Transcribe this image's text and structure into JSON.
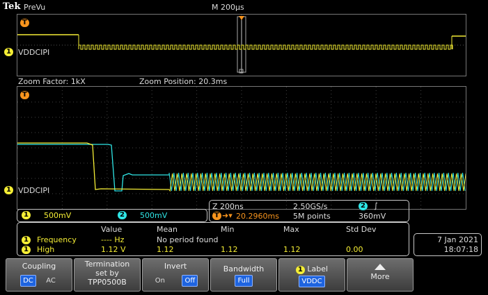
{
  "header": {
    "brand": "Tek",
    "mode": "PreVu",
    "timebase": "M 200μs"
  },
  "overview": {
    "channel_num": "1",
    "channel_label": "VDDCIPI",
    "trigger_marker": "T"
  },
  "zoom_info": {
    "factor": "Zoom Factor: 1kX",
    "position": "Zoom Position: 20.3ms"
  },
  "zoom_view": {
    "trigger_marker": "T",
    "channel_num": "1",
    "channel_label": "VDDCIPI"
  },
  "scales": {
    "ch1_num": "1",
    "ch1_scale": "500mV",
    "ch2_num": "2",
    "ch2_scale": "500mV"
  },
  "acq": {
    "zoom_scale": "Z 200ns",
    "sample_rate": "2.50GS/s",
    "trig_source": "2",
    "trig_slope": "∫",
    "trig_pos_marker": "T",
    "trig_pos": "20.2960ms",
    "record_length": "5M points",
    "trig_level": "360mV"
  },
  "measurements": {
    "headers": [
      "Value",
      "Mean",
      "Min",
      "Max",
      "Std Dev"
    ],
    "rows": [
      {
        "ch": "1",
        "name": "Frequency",
        "value": "---- Hz",
        "mean": "No period found",
        "min": "",
        "max": "",
        "std": ""
      },
      {
        "ch": "1",
        "name": "High",
        "value": "1.12 V",
        "mean": "1.12",
        "min": "1.12",
        "max": "1.12",
        "std": "0.00"
      }
    ]
  },
  "datetime": {
    "date": "7 Jan  2021",
    "time": "18:07:18"
  },
  "softkeys": {
    "coupling": {
      "title": "Coupling",
      "opt1": "DC",
      "opt2": "AC"
    },
    "termination": {
      "line1": "Termination",
      "line2": "set by",
      "line3": "TPP0500B"
    },
    "invert": {
      "title": "Invert",
      "opt1": "On",
      "opt2": "Off"
    },
    "bandwidth": {
      "title": "Bandwidth",
      "value": "Full"
    },
    "label": {
      "ch": "1",
      "title": "Label",
      "value": "VDDC"
    },
    "more": {
      "title": "More"
    }
  },
  "colors": {
    "ch1": "#f5ee35",
    "ch2": "#2fe6e6",
    "trigger": "#f7941d",
    "selected": "#1e64e0"
  }
}
